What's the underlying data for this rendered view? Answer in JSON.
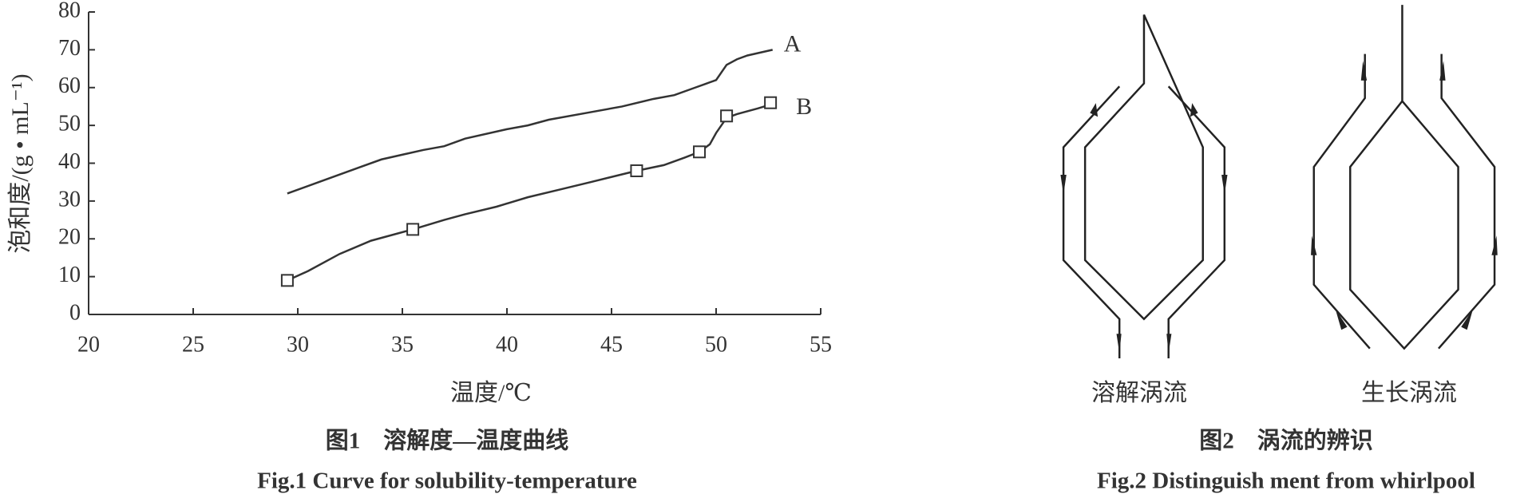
{
  "chart_data": {
    "type": "line",
    "x_label": "温度/℃",
    "y_label": "泡和度/(g • mL⁻¹)",
    "caption_cn": "图1　溶解度—温度曲线",
    "caption_en": "Fig.1   Curve for solubility-temperature",
    "xlim": [
      20,
      55
    ],
    "xticks": [
      20,
      25,
      30,
      35,
      40,
      45,
      50,
      55
    ],
    "ylim": [
      0,
      80
    ],
    "yticks": [
      0,
      10,
      20,
      30,
      40,
      50,
      60,
      70,
      80
    ],
    "series": [
      {
        "name": "A",
        "color": "#333333",
        "x": [
          29.5,
          31,
          33,
          34,
          36,
          37,
          38,
          40,
          41,
          42,
          44,
          45.5,
          47,
          48,
          49,
          49.5,
          50,
          50.5,
          51,
          51.5,
          52.7
        ],
        "values": [
          32,
          35,
          39,
          41,
          43.5,
          44.5,
          46.5,
          49,
          50,
          51.5,
          53.5,
          55,
          57,
          58,
          60,
          61,
          62,
          66,
          67.5,
          68.5,
          70
        ]
      },
      {
        "name": "B",
        "color": "#333333",
        "x": [
          29.5,
          30.5,
          32,
          33.5,
          35.5,
          37,
          38,
          39.5,
          41,
          42.5,
          44,
          46.2,
          47.5,
          48.5,
          49.2,
          49.7,
          50,
          50.5,
          51,
          52,
          52.6
        ],
        "values": [
          9,
          11.5,
          16,
          19.5,
          22.5,
          25,
          26.5,
          28.5,
          31,
          33,
          35,
          38,
          39.5,
          41.5,
          43,
          45,
          48,
          52,
          53,
          54.5,
          55.5
        ],
        "markers": {
          "x": [
            29.5,
            35.5,
            46.2,
            49.2,
            50.5,
            52.6
          ],
          "values": [
            9,
            22.5,
            38,
            43,
            52.5,
            56
          ]
        }
      }
    ]
  },
  "figure2": {
    "label_left": "溶解涡流",
    "label_right": "生长涡流",
    "caption_cn": "图2　涡流的辨识",
    "caption_en": "Fig.2   Distinguish ment from whirlpool"
  }
}
